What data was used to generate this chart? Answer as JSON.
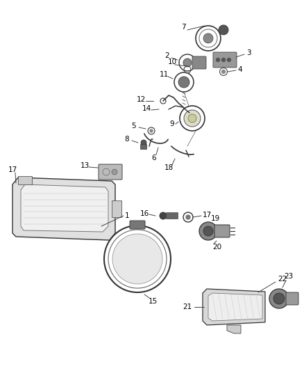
{
  "bg_color": "#ffffff",
  "fig_width": 4.38,
  "fig_height": 5.33,
  "dpi": 100,
  "gray": "#555555",
  "dark": "#222222",
  "light_gray": "#cccccc",
  "mid_gray": "#888888"
}
